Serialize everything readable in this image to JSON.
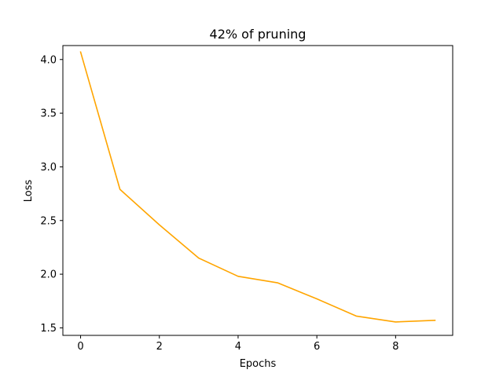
{
  "chart_data": {
    "type": "line",
    "title": "42% of pruning",
    "xlabel": "Epochs",
    "ylabel": "Loss",
    "xlim": [
      -0.45,
      9.45
    ],
    "ylim": [
      1.43,
      4.13
    ],
    "xticks": [
      0,
      2,
      4,
      6,
      8
    ],
    "xtick_labels": [
      "0",
      "2",
      "4",
      "6",
      "8"
    ],
    "yticks": [
      1.5,
      2.0,
      2.5,
      3.0,
      3.5,
      4.0
    ],
    "ytick_labels": [
      "1.5",
      "2.0",
      "2.5",
      "3.0",
      "3.5",
      "4.0"
    ],
    "grid": false,
    "series": [
      {
        "color": "#ffa500",
        "x": [
          0,
          1,
          2,
          3,
          4,
          5,
          6,
          7,
          8,
          9
        ],
        "y": [
          4.07,
          2.79,
          2.46,
          2.15,
          1.98,
          1.92,
          1.77,
          1.61,
          1.555,
          1.57
        ]
      }
    ]
  }
}
